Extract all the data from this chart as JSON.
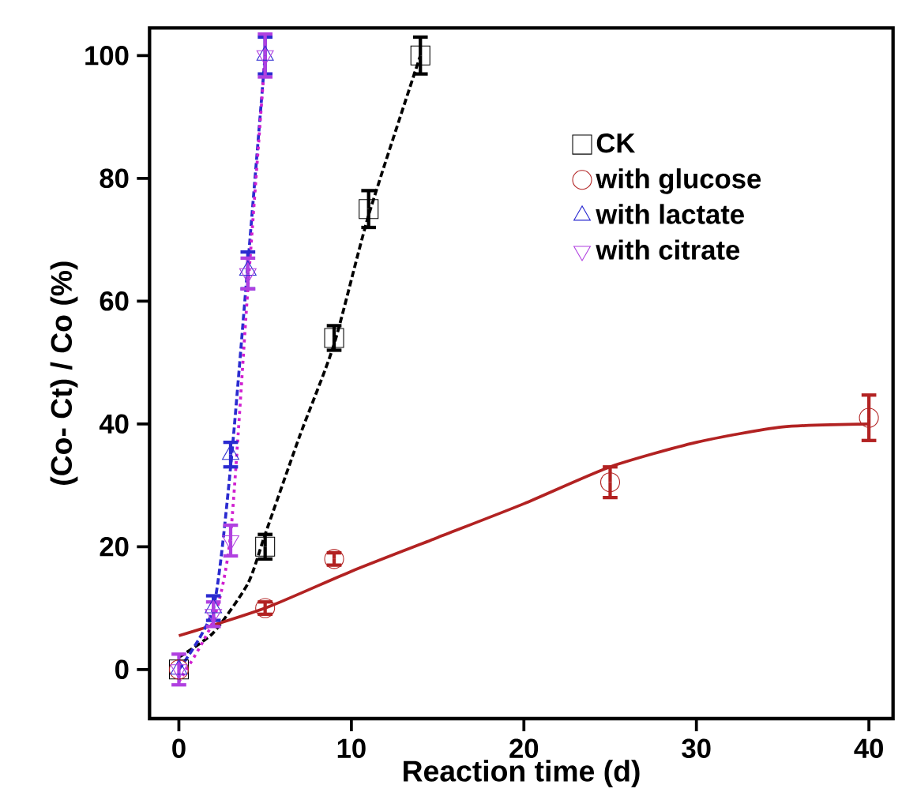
{
  "chart_data": {
    "type": "scatter",
    "xlabel": "Reaction time (d)",
    "ylabel": "(Co- Ct) / Co (%)",
    "xlim": [
      -1.7,
      41.4
    ],
    "ylim": [
      -8,
      104.5
    ],
    "xticks": [
      0,
      10,
      20,
      30,
      40
    ],
    "yticks": [
      0,
      20,
      40,
      60,
      80,
      100
    ],
    "legend": "right",
    "grid": false,
    "series": [
      {
        "name": "CK",
        "marker": "square",
        "color": "#000000",
        "x": [
          0,
          5,
          9,
          11,
          14
        ],
        "values": [
          0,
          20,
          54,
          75,
          100
        ],
        "errors": [
          null,
          2,
          2,
          3,
          3
        ]
      },
      {
        "name": "with glucose",
        "marker": "circle",
        "color": "#b22222",
        "x": [
          0,
          5,
          9,
          25,
          40
        ],
        "values": [
          0,
          10,
          18,
          30.5,
          41
        ],
        "errors": [
          null,
          1,
          1,
          2.5,
          3.7
        ]
      },
      {
        "name": "with lactate",
        "marker": "triangle",
        "color": "#2b2bd0",
        "x": [
          0,
          2,
          3,
          4,
          5
        ],
        "values": [
          0,
          10,
          35,
          65,
          100
        ],
        "errors": [
          null,
          2,
          2,
          3,
          3
        ]
      },
      {
        "name": "with citrate",
        "marker": "triangle-down",
        "color": "#b040e0",
        "x": [
          0,
          2,
          3,
          4,
          5
        ],
        "values": [
          0,
          9,
          21,
          64.5,
          100
        ],
        "errors": [
          2.5,
          2,
          2.5,
          2.5,
          3.5
        ]
      },
      {
        "type": "line",
        "line_style": "dashed",
        "color": "#000000",
        "x": [
          0,
          2,
          4,
          5,
          7,
          9,
          11,
          14
        ],
        "values": [
          2,
          6,
          14,
          22,
          38,
          53,
          74,
          100
        ]
      },
      {
        "type": "line",
        "line_style": "solid",
        "color": "#b22222",
        "x": [
          0,
          5,
          10,
          15,
          20,
          25,
          30,
          35,
          40
        ],
        "values": [
          5.5,
          10,
          16,
          21.5,
          27,
          33,
          37,
          39.5,
          40
        ]
      },
      {
        "type": "line",
        "line_style": "dashed",
        "color": "#2b2bd0",
        "x": [
          0,
          2,
          3,
          4,
          5
        ],
        "values": [
          0,
          10,
          33,
          66,
          100
        ]
      },
      {
        "type": "line",
        "line_style": "dotted",
        "color": "#d020d0",
        "x": [
          0,
          2,
          3,
          4,
          5
        ],
        "values": [
          -2,
          8,
          22,
          62,
          100
        ]
      }
    ]
  }
}
